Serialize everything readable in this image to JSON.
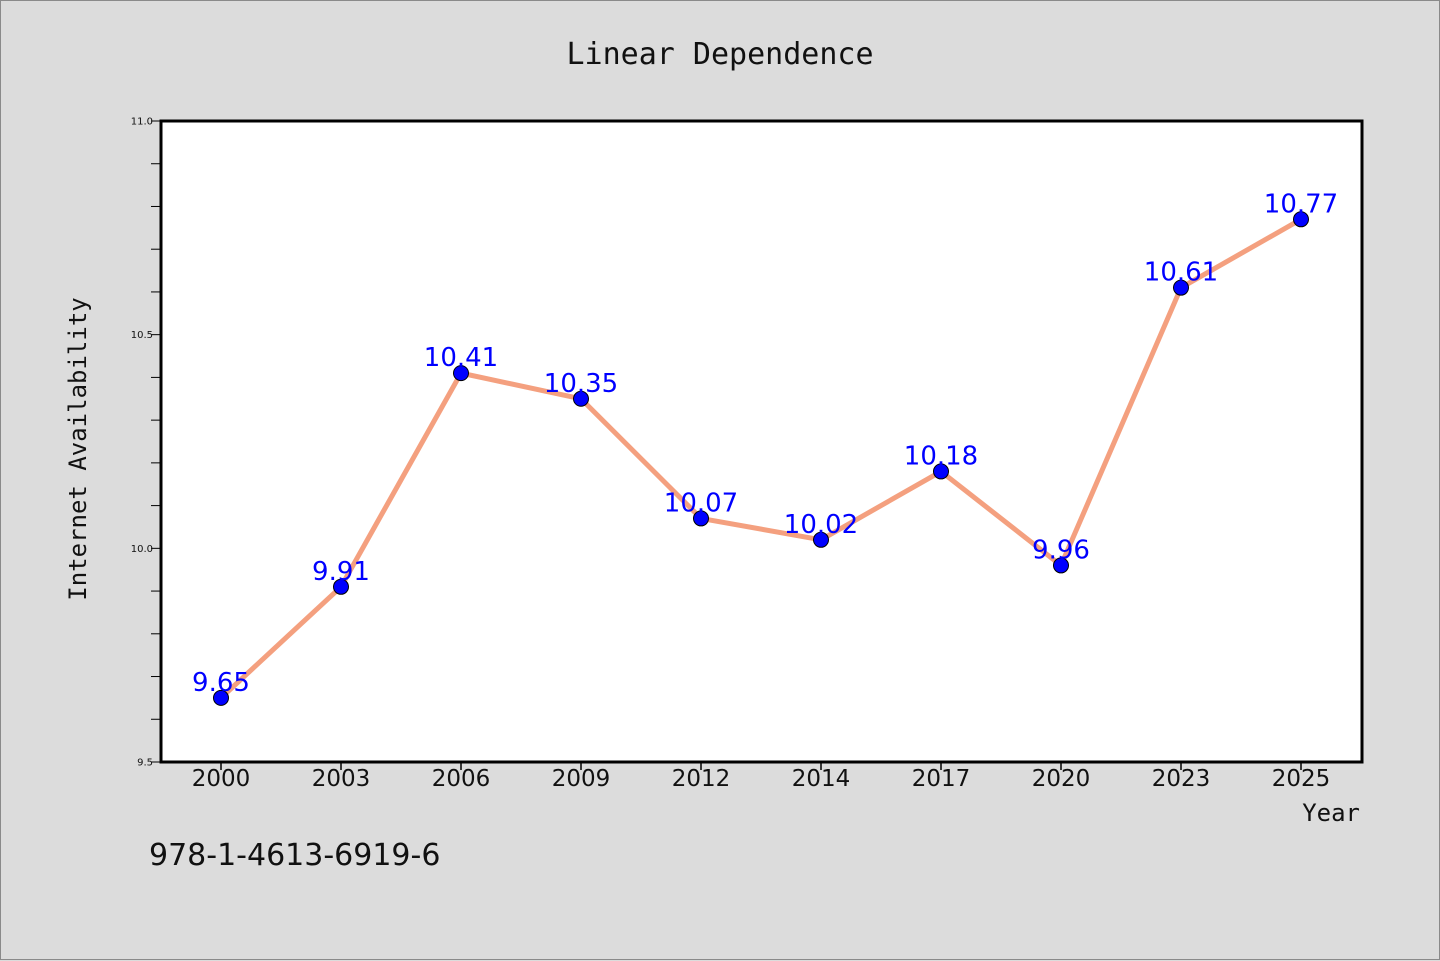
{
  "colors": {
    "page_background": "#dcdcdc",
    "plot_background": "#ffffff",
    "line": "#f4a07f",
    "marker": "#0000ff",
    "data_label": "#0000ff",
    "text": "#111111"
  },
  "footnote": "978-1-4613-6919-6",
  "chart_data": {
    "type": "line",
    "title": "Linear Dependence",
    "xlabel": "Year",
    "ylabel": "Internet Availability",
    "categories": [
      "2000",
      "2003",
      "2006",
      "2009",
      "2012",
      "2014",
      "2017",
      "2020",
      "2023",
      "2025"
    ],
    "series": [
      {
        "values": [
          9.65,
          9.91,
          10.41,
          10.35,
          10.07,
          10.02,
          10.18,
          9.96,
          10.61,
          10.77
        ],
        "labels": [
          "9.65",
          "9.91",
          "10.41",
          "10.35",
          "10.07",
          "10.02",
          "10.18",
          "9.96",
          "10.61",
          "10.77"
        ]
      }
    ],
    "ylim": [
      9.5,
      11.0
    ],
    "yticks": [
      "9.5",
      "10.0",
      "10.5",
      "11.0"
    ],
    "y_minor_step": 0.1,
    "grid": false,
    "legend": "none",
    "markers": true,
    "data_labels": true
  }
}
